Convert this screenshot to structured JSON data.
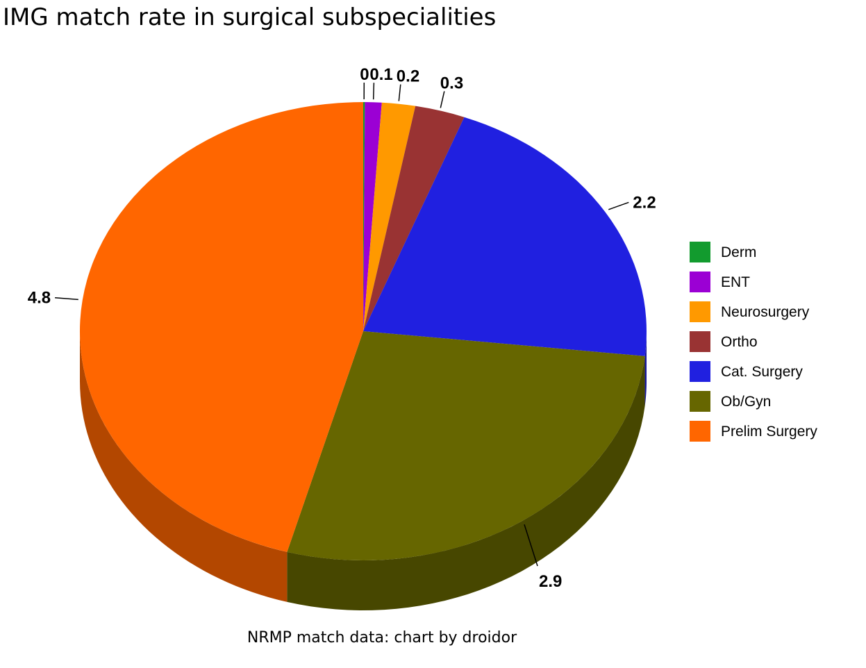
{
  "chart_data": {
    "type": "pie",
    "style": "3d",
    "title": "IMG match rate in surgical subspecialities",
    "caption": "NRMP match data: chart by droidor",
    "legend_position": "right",
    "slices": [
      {
        "label": "Derm",
        "value": 0.01,
        "display": "0",
        "color": "#129b2e"
      },
      {
        "label": "ENT",
        "value": 0.1,
        "display": "0.1",
        "color": "#9b00d4"
      },
      {
        "label": "Neurosurgery",
        "value": 0.2,
        "display": "0.2",
        "color": "#ff9900"
      },
      {
        "label": "Ortho",
        "value": 0.3,
        "display": "0.3",
        "color": "#993333"
      },
      {
        "label": "Cat. Surgery",
        "value": 2.2,
        "display": "2.2",
        "color": "#2020e0"
      },
      {
        "label": "Ob/Gyn",
        "value": 2.9,
        "display": "2.9",
        "color": "#666600"
      },
      {
        "label": "Prelim Surgery",
        "value": 4.8,
        "display": "4.8",
        "color": "#ff6600"
      }
    ]
  }
}
